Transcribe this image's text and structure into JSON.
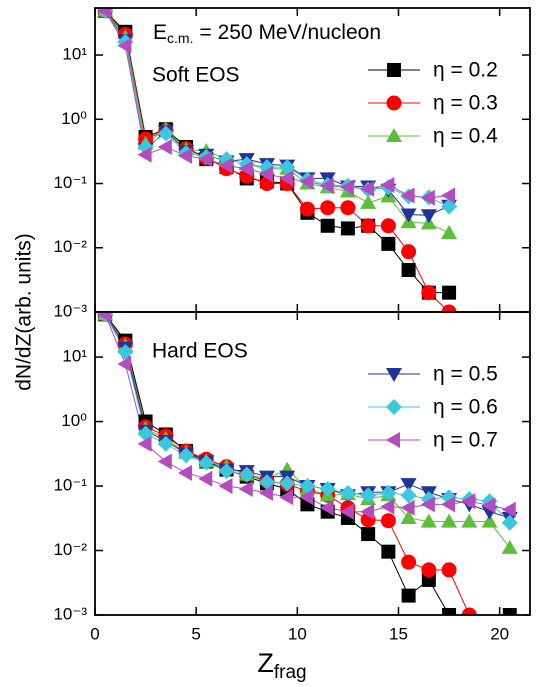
{
  "chart_data": [
    {
      "type": "line",
      "log_y": true,
      "xtick_labels": false,
      "title_parts": [
        "E",
        "c.m.",
        "= 250 MeV/nucleon"
      ],
      "annotation": "Soft EOS",
      "ylabel": "dN/dZ(arb. units)",
      "xlim": [
        0,
        21.5
      ],
      "xticks": [
        0,
        5,
        10,
        15,
        20
      ],
      "ylim": [
        0.001,
        54
      ],
      "yticks": [
        {
          "value": 0.001,
          "label": "10⁻³"
        },
        {
          "value": 0.01,
          "label": "10⁻²"
        },
        {
          "value": 0.1,
          "label": "10⁻¹"
        },
        {
          "value": 1,
          "label": "10⁰"
        },
        {
          "value": 10,
          "label": "10¹"
        }
      ],
      "x": [
        0.5,
        1.5,
        2.5,
        3.5,
        4.5,
        5.5,
        6.5,
        7.5,
        8.5,
        9.5,
        10.5,
        11.5,
        12.5,
        13.5,
        14.5,
        15.5,
        16.5,
        17.5
      ],
      "series": [
        {
          "name": "η = 0.2",
          "color": "#000000",
          "marker": "square",
          "values": [
            49,
            23,
            0.53,
            0.7,
            0.37,
            0.24,
            0.18,
            0.12,
            0.108,
            0.1,
            0.035,
            0.022,
            0.02,
            0.022,
            0.0115,
            0.0045,
            0.002,
            0.002
          ]
        },
        {
          "name": "η = 0.3",
          "color": "#ff0000",
          "marker": "circle",
          "values": [
            49,
            21,
            0.49,
            0.67,
            0.35,
            0.25,
            0.17,
            0.13,
            0.1,
            0.1,
            0.04,
            0.042,
            0.042,
            0.022,
            0.022,
            0.0087,
            0.002,
            0.001
          ]
        },
        {
          "name": "η = 0.4",
          "color": "#5cbf3a",
          "marker": "triangle-up",
          "values": [
            49,
            19,
            0.42,
            0.7,
            0.34,
            0.32,
            0.24,
            0.2,
            0.17,
            0.17,
            0.1,
            0.087,
            0.075,
            0.05,
            0.063,
            0.025,
            0.024,
            0.017
          ]
        },
        {
          "color": "#22329a",
          "marker": "triangle-down",
          "values": [
            49,
            17,
            0.34,
            0.65,
            0.32,
            0.28,
            0.22,
            0.24,
            0.2,
            0.19,
            0.12,
            0.12,
            0.09,
            0.09,
            0.08,
            0.033,
            0.032,
            0.045
          ]
        },
        {
          "color": "#3cc8dc",
          "marker": "diamond",
          "values": [
            49,
            16,
            0.37,
            0.6,
            0.3,
            0.26,
            0.24,
            0.2,
            0.18,
            0.18,
            0.115,
            0.095,
            0.092,
            0.08,
            0.087,
            0.063,
            0.061,
            0.044
          ]
        },
        {
          "color": "#b44cc0",
          "marker": "triangle-left",
          "values": [
            49,
            14,
            0.28,
            0.37,
            0.27,
            0.24,
            0.19,
            0.17,
            0.14,
            0.12,
            0.107,
            0.092,
            0.087,
            0.083,
            0.095,
            0.065,
            0.06,
            0.065
          ]
        }
      ]
    },
    {
      "type": "line",
      "log_y": true,
      "xtick_labels": true,
      "annotation": "Hard EOS",
      "xlabel_parts": [
        "Z",
        "frag"
      ],
      "xlim": [
        0,
        21.5
      ],
      "xticks": [
        0,
        5,
        10,
        15,
        20
      ],
      "ylim": [
        0.001,
        50
      ],
      "yticks": [
        {
          "value": 0.001,
          "label": "10⁻³"
        },
        {
          "value": 0.01,
          "label": "10⁻²"
        },
        {
          "value": 0.1,
          "label": "10⁻¹"
        },
        {
          "value": 1,
          "label": "10⁰"
        },
        {
          "value": 10,
          "label": "10¹"
        }
      ],
      "x": [
        0.5,
        1.5,
        2.5,
        3.5,
        4.5,
        5.5,
        6.5,
        7.5,
        8.5,
        9.5,
        10.5,
        11.5,
        12.5,
        13.5,
        14.5,
        15.5,
        16.5,
        17.5,
        18.5,
        19.5,
        20.5
      ],
      "series": [
        {
          "color": "#000000",
          "marker": "square",
          "values": [
            46,
            18,
            1.0,
            0.63,
            0.35,
            0.24,
            0.18,
            0.14,
            0.11,
            0.09,
            0.052,
            0.04,
            0.032,
            0.018,
            0.0096,
            0.002,
            0.0035,
            0.001,
            null,
            null,
            0.001
          ]
        },
        {
          "color": "#ff0000",
          "marker": "circle",
          "values": [
            46,
            16,
            0.83,
            0.6,
            0.35,
            0.26,
            0.2,
            0.15,
            0.12,
            0.107,
            0.083,
            0.072,
            0.046,
            0.03,
            0.029,
            0.0066,
            0.005,
            0.005,
            0.001,
            null,
            null
          ]
        },
        {
          "color": "#5cbf3a",
          "marker": "triangle-up",
          "values": [
            46,
            15,
            0.78,
            0.54,
            0.33,
            0.24,
            0.2,
            0.15,
            0.13,
            0.18,
            0.09,
            0.072,
            0.075,
            0.063,
            0.072,
            0.032,
            0.028,
            0.028,
            0.028,
            0.028,
            0.011
          ]
        },
        {
          "name": "η = 0.5",
          "color": "#22329a",
          "marker": "triangle-down",
          "values": [
            46,
            14,
            0.72,
            0.5,
            0.32,
            0.24,
            0.18,
            0.17,
            0.14,
            0.14,
            0.1,
            0.09,
            0.072,
            0.08,
            0.08,
            0.107,
            0.08,
            0.063,
            0.052,
            0.04,
            0.032
          ]
        },
        {
          "name": "η = 0.6",
          "color": "#3cc8dc",
          "marker": "diamond",
          "values": [
            46,
            12,
            0.65,
            0.45,
            0.3,
            0.23,
            0.17,
            0.15,
            0.115,
            0.11,
            0.1,
            0.09,
            0.078,
            0.072,
            0.078,
            0.072,
            0.063,
            0.067,
            0.063,
            0.058,
            0.027
          ]
        },
        {
          "name": "η = 0.7",
          "color": "#b44cc0",
          "marker": "triangle-left",
          "values": [
            46,
            7.8,
            0.45,
            0.24,
            0.16,
            0.13,
            0.1,
            0.09,
            0.078,
            0.067,
            0.067,
            0.046,
            0.04,
            0.04,
            0.048,
            0.046,
            0.052,
            0.052,
            0.058,
            0.05,
            0.043
          ]
        }
      ]
    }
  ]
}
